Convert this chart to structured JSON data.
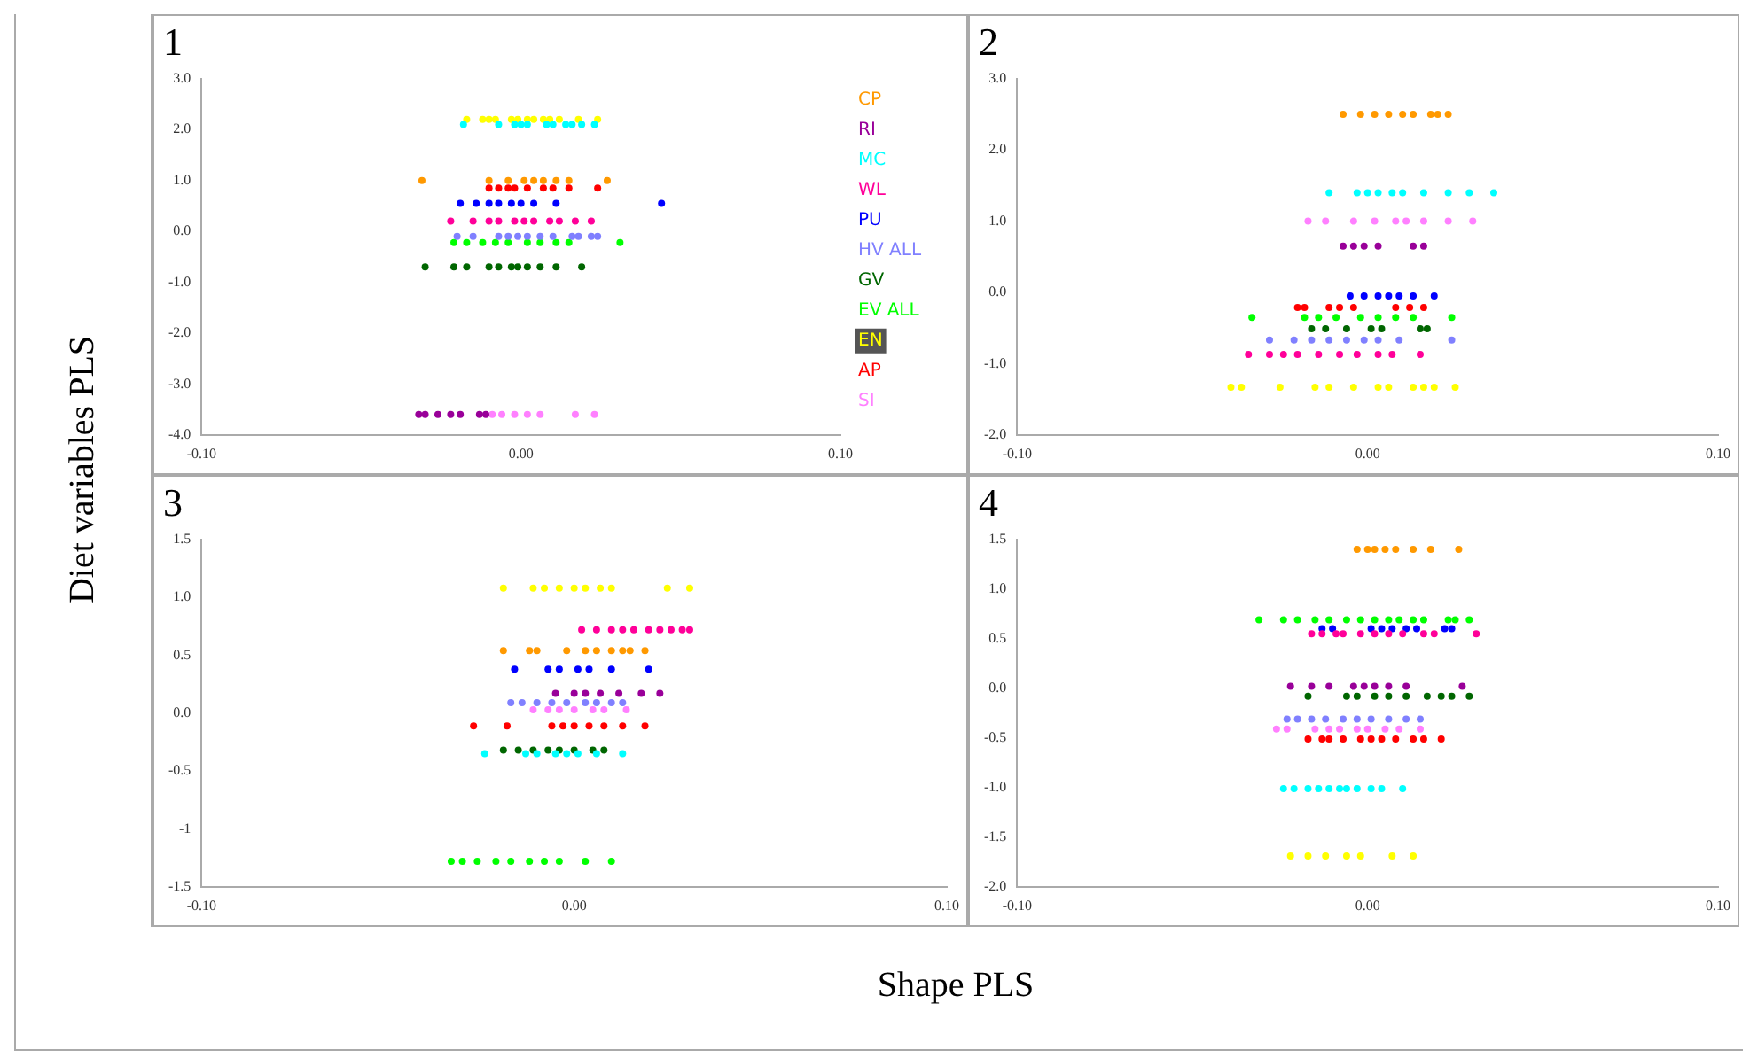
{
  "chart_data": [
    {
      "type": "scatter",
      "title": "1",
      "ylabel": "Diet variables PLS",
      "legend": "right",
      "marker": "circle",
      "grid": false,
      "xlim": [
        -0.1,
        0.1
      ],
      "xticks": [
        {
          "value": -0.1,
          "label": "-0.10"
        },
        {
          "value": 0,
          "label": "0.00"
        },
        {
          "value": 0.1,
          "label": "0.10"
        }
      ],
      "ylim": [
        -4,
        3
      ],
      "yticks": [
        {
          "value": -4,
          "label": "-4.0"
        },
        {
          "value": -3,
          "label": "-3.0"
        },
        {
          "value": -2,
          "label": "-2.0"
        },
        {
          "value": -1,
          "label": "-1.0"
        },
        {
          "value": 0,
          "label": "0.0"
        },
        {
          "value": 1,
          "label": "1.0"
        },
        {
          "value": 2,
          "label": "2.0"
        },
        {
          "value": 3,
          "label": "3.0"
        }
      ],
      "series": [
        {
          "name": "CP",
          "color": "#ff9900",
          "x": [
            -0.031,
            -0.01,
            -0.004,
            0.001,
            0.004,
            0.007,
            0.011,
            0.015,
            0.027
          ],
          "values": [
            1.0,
            1.0,
            1.0,
            1.0,
            1.0,
            1.0,
            1.0,
            1.0,
            1.0
          ]
        },
        {
          "name": "RI",
          "color": "#990099",
          "x": [
            -0.032,
            -0.03,
            -0.026,
            -0.022,
            -0.019,
            -0.013,
            -0.011
          ],
          "values": [
            -3.6,
            -3.6,
            -3.6,
            -3.6,
            -3.6,
            -3.6,
            -3.6
          ]
        },
        {
          "name": "MC",
          "color": "#00ffff",
          "x": [
            -0.018,
            -0.007,
            -0.002,
            0,
            0.002,
            0.008,
            0.01,
            0.014,
            0.016,
            0.019,
            0.023
          ],
          "values": [
            2.1,
            2.1,
            2.1,
            2.1,
            2.1,
            2.1,
            2.1,
            2.1,
            2.1,
            2.1,
            2.1
          ]
        },
        {
          "name": "WL",
          "color": "#ff0099",
          "x": [
            -0.022,
            -0.015,
            -0.01,
            -0.007,
            -0.002,
            0.001,
            0.004,
            0.009,
            0.012,
            0.017,
            0.022
          ],
          "values": [
            0.2,
            0.2,
            0.2,
            0.2,
            0.2,
            0.2,
            0.2,
            0.2,
            0.2,
            0.2,
            0.2
          ]
        },
        {
          "name": "PU",
          "color": "#0000ff",
          "x": [
            -0.019,
            -0.014,
            -0.01,
            -0.007,
            -0.003,
            0,
            0.004,
            0.011,
            0.044
          ],
          "values": [
            0.55,
            0.55,
            0.55,
            0.55,
            0.55,
            0.55,
            0.55,
            0.55,
            0.55
          ]
        },
        {
          "name": "HV ALL",
          "color": "#8080ff",
          "x": [
            -0.02,
            -0.015,
            -0.007,
            -0.004,
            -0.001,
            0.002,
            0.006,
            0.01,
            0.016,
            0.018,
            0.022,
            0.024
          ],
          "values": [
            -0.1,
            -0.1,
            -0.1,
            -0.1,
            -0.1,
            -0.1,
            -0.1,
            -0.1,
            -0.1,
            -0.1,
            -0.1,
            -0.1
          ]
        },
        {
          "name": "GV",
          "color": "#006600",
          "x": [
            -0.03,
            -0.021,
            -0.017,
            -0.01,
            -0.007,
            -0.003,
            -0.001,
            0.002,
            0.006,
            0.011,
            0.019
          ],
          "values": [
            -0.7,
            -0.7,
            -0.7,
            -0.7,
            -0.7,
            -0.7,
            -0.7,
            -0.7,
            -0.7,
            -0.7,
            -0.7
          ]
        },
        {
          "name": "EV ALL",
          "color": "#00ff00",
          "x": [
            -0.021,
            -0.017,
            -0.012,
            -0.008,
            -0.004,
            0.002,
            0.006,
            0.011,
            0.015,
            0.031
          ],
          "values": [
            -0.22,
            -0.22,
            -0.22,
            -0.22,
            -0.22,
            -0.22,
            -0.22,
            -0.22,
            -0.22,
            -0.22
          ]
        },
        {
          "name": "EN",
          "color": "#ffff00",
          "x": [
            -0.017,
            -0.012,
            -0.01,
            -0.008,
            -0.003,
            -0.001,
            0.002,
            0.004,
            0.007,
            0.009,
            0.012,
            0.018,
            0.024
          ],
          "values": [
            2.2,
            2.2,
            2.2,
            2.2,
            2.2,
            2.2,
            2.2,
            2.2,
            2.2,
            2.2,
            2.2,
            2.2,
            2.2
          ]
        },
        {
          "name": "AP",
          "color": "#ff0000",
          "x": [
            -0.01,
            -0.007,
            -0.004,
            -0.002,
            0.002,
            0.007,
            0.01,
            0.015,
            0.024
          ],
          "values": [
            0.85,
            0.85,
            0.85,
            0.85,
            0.85,
            0.85,
            0.85,
            0.85,
            0.85
          ]
        },
        {
          "name": "SI",
          "color": "#ff80ff",
          "x": [
            -0.009,
            -0.006,
            -0.002,
            0.002,
            0.006,
            0.017,
            0.023
          ],
          "values": [
            -3.6,
            -3.6,
            -3.6,
            -3.6,
            -3.6,
            -3.6,
            -3.6
          ]
        }
      ]
    },
    {
      "type": "scatter",
      "title": "2",
      "marker": "circle",
      "grid": false,
      "xlim": [
        -0.1,
        0.1
      ],
      "xticks": [
        {
          "value": -0.1,
          "label": "-0.10"
        },
        {
          "value": 0,
          "label": "0.00"
        },
        {
          "value": 0.1,
          "label": "0.10"
        }
      ],
      "ylim": [
        -2,
        3
      ],
      "yticks": [
        {
          "value": -2,
          "label": "-2.0"
        },
        {
          "value": -1,
          "label": "-1.0"
        },
        {
          "value": 0,
          "label": "0.0"
        },
        {
          "value": 1,
          "label": "1.0"
        },
        {
          "value": 2,
          "label": "2.0"
        },
        {
          "value": 3,
          "label": "3.0"
        }
      ],
      "series": [
        {
          "color": "#ff9900",
          "x": [
            -0.007,
            -0.002,
            0.002,
            0.006,
            0.01,
            0.013,
            0.018,
            0.02,
            0.023
          ],
          "values": [
            2.5,
            2.5,
            2.5,
            2.5,
            2.5,
            2.5,
            2.5,
            2.5,
            2.5
          ]
        },
        {
          "color": "#990099",
          "x": [
            -0.007,
            -0.004,
            -0.001,
            0.003,
            0.013,
            0.016
          ],
          "values": [
            0.65,
            0.65,
            0.65,
            0.65,
            0.65,
            0.65
          ]
        },
        {
          "color": "#00ffff",
          "x": [
            -0.011,
            -0.003,
            0,
            0.003,
            0.007,
            0.01,
            0.016,
            0.023,
            0.029,
            0.036
          ],
          "values": [
            1.4,
            1.4,
            1.4,
            1.4,
            1.4,
            1.4,
            1.4,
            1.4,
            1.4,
            1.4
          ]
        },
        {
          "color": "#ff0099",
          "x": [
            -0.034,
            -0.028,
            -0.024,
            -0.02,
            -0.014,
            -0.008,
            -0.003,
            0.003,
            0.007,
            0.015
          ],
          "values": [
            -0.87,
            -0.87,
            -0.87,
            -0.87,
            -0.87,
            -0.87,
            -0.87,
            -0.87,
            -0.87,
            -0.87
          ]
        },
        {
          "color": "#0000ff",
          "x": [
            -0.005,
            -0.001,
            0.003,
            0.006,
            0.009,
            0.013,
            0.019
          ],
          "values": [
            -0.05,
            -0.05,
            -0.05,
            -0.05,
            -0.05,
            -0.05,
            -0.05
          ]
        },
        {
          "color": "#8080ff",
          "x": [
            -0.028,
            -0.021,
            -0.016,
            -0.011,
            -0.006,
            -0.001,
            0.003,
            0.009,
            0.024
          ],
          "values": [
            -0.67,
            -0.67,
            -0.67,
            -0.67,
            -0.67,
            -0.67,
            -0.67,
            -0.67,
            -0.67
          ]
        },
        {
          "color": "#006600",
          "x": [
            -0.016,
            -0.012,
            -0.006,
            0.001,
            0.004,
            0.015,
            0.017
          ],
          "values": [
            -0.51,
            -0.51,
            -0.51,
            -0.51,
            -0.51,
            -0.51,
            -0.51
          ]
        },
        {
          "color": "#00ff00",
          "x": [
            -0.033,
            -0.018,
            -0.014,
            -0.009,
            -0.002,
            0.003,
            0.008,
            0.013,
            0.024
          ],
          "values": [
            -0.35,
            -0.35,
            -0.35,
            -0.35,
            -0.35,
            -0.35,
            -0.35,
            -0.35,
            -0.35
          ]
        },
        {
          "color": "#ffff00",
          "x": [
            -0.039,
            -0.036,
            -0.025,
            -0.015,
            -0.011,
            -0.004,
            0.003,
            0.006,
            0.013,
            0.016,
            0.019,
            0.025
          ],
          "values": [
            -1.33,
            -1.33,
            -1.33,
            -1.33,
            -1.33,
            -1.33,
            -1.33,
            -1.33,
            -1.33,
            -1.33,
            -1.33,
            -1.33
          ]
        },
        {
          "color": "#ff0000",
          "x": [
            -0.02,
            -0.018,
            -0.011,
            -0.008,
            -0.004,
            0.008,
            0.012,
            0.016
          ],
          "values": [
            -0.21,
            -0.21,
            -0.21,
            -0.21,
            -0.21,
            -0.21,
            -0.21,
            -0.21
          ]
        },
        {
          "color": "#ff80ff",
          "x": [
            -0.017,
            -0.012,
            -0.004,
            0.002,
            0.008,
            0.011,
            0.016,
            0.023,
            0.03
          ],
          "values": [
            1.0,
            1.0,
            1.0,
            1.0,
            1.0,
            1.0,
            1.0,
            1.0,
            1.0
          ]
        }
      ]
    },
    {
      "type": "scatter",
      "title": "3",
      "xlabel": "Shape PLS",
      "marker": "circle",
      "grid": false,
      "xlim": [
        -0.1,
        0.1
      ],
      "xticks": [
        {
          "value": -0.1,
          "label": "-0.10"
        },
        {
          "value": 0,
          "label": "0.00"
        },
        {
          "value": 0.1,
          "label": "0.10"
        }
      ],
      "ylim": [
        -1.5,
        1.5
      ],
      "yticks": [
        -1.5,
        -1.0,
        -0.5,
        {
          "value": 0,
          "label": "0.0"
        },
        0.5,
        {
          "value": 1,
          "label": "1.0"
        },
        1.5
      ],
      "series": [
        {
          "color": "#ff9900",
          "x": [
            -0.019,
            -0.012,
            -0.01,
            -0.002,
            0.003,
            0.006,
            0.01,
            0.013,
            0.015,
            0.019
          ],
          "values": [
            0.54,
            0.54,
            0.54,
            0.54,
            0.54,
            0.54,
            0.54,
            0.54,
            0.54,
            0.54
          ]
        },
        {
          "color": "#990099",
          "x": [
            -0.005,
            0,
            0.003,
            0.007,
            0.012,
            0.018,
            0.023
          ],
          "values": [
            0.17,
            0.17,
            0.17,
            0.17,
            0.17,
            0.17,
            0.17
          ]
        },
        {
          "color": "#00ffff",
          "x": [
            -0.024,
            -0.013,
            -0.01,
            -0.005,
            -0.002,
            0.001,
            0.006,
            0.013
          ],
          "values": [
            -0.35,
            -0.35,
            -0.35,
            -0.35,
            -0.35,
            -0.35,
            -0.35,
            -0.35
          ]
        },
        {
          "color": "#ff0099",
          "x": [
            0.002,
            0.006,
            0.01,
            0.013,
            0.016,
            0.02,
            0.023,
            0.026,
            0.029,
            0.031
          ],
          "values": [
            0.72,
            0.72,
            0.72,
            0.72,
            0.72,
            0.72,
            0.72,
            0.72,
            0.72,
            0.72
          ]
        },
        {
          "color": "#0000ff",
          "x": [
            -0.016,
            -0.007,
            -0.004,
            0.001,
            0.004,
            0.01,
            0.02
          ],
          "values": [
            0.38,
            0.38,
            0.38,
            0.38,
            0.38,
            0.38,
            0.38
          ]
        },
        {
          "color": "#8080ff",
          "x": [
            -0.017,
            -0.014,
            -0.01,
            -0.006,
            -0.002,
            0.003,
            0.006,
            0.01,
            0.013
          ],
          "values": [
            0.09,
            0.09,
            0.09,
            0.09,
            0.09,
            0.09,
            0.09,
            0.09,
            0.09
          ]
        },
        {
          "color": "#006600",
          "x": [
            -0.019,
            -0.015,
            -0.011,
            -0.007,
            -0.004,
            0,
            0.005,
            0.008
          ],
          "values": [
            -0.32,
            -0.32,
            -0.32,
            -0.32,
            -0.32,
            -0.32,
            -0.32,
            -0.32
          ]
        },
        {
          "color": "#00ff00",
          "x": [
            -0.033,
            -0.03,
            -0.026,
            -0.021,
            -0.017,
            -0.012,
            -0.008,
            -0.004,
            0.003,
            0.01
          ],
          "values": [
            -1.28,
            -1.28,
            -1.28,
            -1.28,
            -1.28,
            -1.28,
            -1.28,
            -1.28,
            -1.28,
            -1.28
          ]
        },
        {
          "color": "#ffff00",
          "x": [
            -0.019,
            -0.011,
            -0.008,
            -0.004,
            0,
            0.003,
            0.007,
            0.01,
            0.025,
            0.031
          ],
          "values": [
            1.08,
            1.08,
            1.08,
            1.08,
            1.08,
            1.08,
            1.08,
            1.08,
            1.08,
            1.08
          ]
        },
        {
          "color": "#ff0000",
          "x": [
            -0.027,
            -0.018,
            -0.006,
            -0.003,
            0,
            0.004,
            0.008,
            0.013,
            0.019
          ],
          "values": [
            -0.11,
            -0.11,
            -0.11,
            -0.11,
            -0.11,
            -0.11,
            -0.11,
            -0.11,
            -0.11
          ]
        },
        {
          "color": "#ff80ff",
          "x": [
            -0.011,
            -0.007,
            -0.004,
            0,
            0.005,
            0.008,
            0.014
          ],
          "values": [
            0.03,
            0.03,
            0.03,
            0.03,
            0.03,
            0.03,
            0.03
          ]
        }
      ]
    },
    {
      "type": "scatter",
      "title": "4",
      "marker": "circle",
      "grid": false,
      "xlim": [
        -0.1,
        0.1
      ],
      "xticks": [
        {
          "value": -0.1,
          "label": "-0.10"
        },
        {
          "value": 0,
          "label": "0.00"
        },
        {
          "value": 0.1,
          "label": "0.10"
        }
      ],
      "ylim": [
        -2,
        1.5
      ],
      "yticks": [
        {
          "value": -2,
          "label": "-2.0"
        },
        -1.5,
        {
          "value": -1,
          "label": "-1.0"
        },
        -0.5,
        {
          "value": 0,
          "label": "0.0"
        },
        0.5,
        {
          "value": 1,
          "label": "1.0"
        },
        1.5
      ],
      "series": [
        {
          "color": "#ff9900",
          "x": [
            -0.003,
            0,
            0.002,
            0.005,
            0.008,
            0.013,
            0.018,
            0.026
          ],
          "values": [
            1.4,
            1.4,
            1.4,
            1.4,
            1.4,
            1.4,
            1.4,
            1.4
          ]
        },
        {
          "color": "#990099",
          "x": [
            -0.022,
            -0.016,
            -0.011,
            -0.004,
            -0.001,
            0.002,
            0.006,
            0.011,
            0.027
          ],
          "values": [
            0.02,
            0.02,
            0.02,
            0.02,
            0.02,
            0.02,
            0.02,
            0.02,
            0.02
          ]
        },
        {
          "color": "#00ffff",
          "x": [
            -0.024,
            -0.021,
            -0.017,
            -0.014,
            -0.011,
            -0.008,
            -0.006,
            -0.003,
            0.001,
            0.004,
            0.01
          ],
          "values": [
            -1.01,
            -1.01,
            -1.01,
            -1.01,
            -1.01,
            -1.01,
            -1.01,
            -1.01,
            -1.01,
            -1.01,
            -1.01
          ]
        },
        {
          "color": "#ff0099",
          "x": [
            -0.016,
            -0.013,
            -0.009,
            -0.007,
            -0.002,
            0.002,
            0.006,
            0.01,
            0.016,
            0.019,
            0.031
          ],
          "values": [
            0.55,
            0.55,
            0.55,
            0.55,
            0.55,
            0.55,
            0.55,
            0.55,
            0.55,
            0.55,
            0.55
          ]
        },
        {
          "color": "#0000ff",
          "x": [
            -0.013,
            -0.01,
            0.001,
            0.004,
            0.007,
            0.011,
            0.014,
            0.022,
            0.024
          ],
          "values": [
            0.6,
            0.6,
            0.6,
            0.6,
            0.6,
            0.6,
            0.6,
            0.6,
            0.6
          ]
        },
        {
          "color": "#8080ff",
          "x": [
            -0.023,
            -0.02,
            -0.016,
            -0.012,
            -0.007,
            -0.003,
            0.001,
            0.006,
            0.011,
            0.015
          ],
          "values": [
            -0.31,
            -0.31,
            -0.31,
            -0.31,
            -0.31,
            -0.31,
            -0.31,
            -0.31,
            -0.31,
            -0.31
          ]
        },
        {
          "color": "#006600",
          "x": [
            -0.017,
            -0.006,
            -0.003,
            0.002,
            0.006,
            0.011,
            0.017,
            0.021,
            0.024,
            0.029
          ],
          "values": [
            -0.08,
            -0.08,
            -0.08,
            -0.08,
            -0.08,
            -0.08,
            -0.08,
            -0.08,
            -0.08,
            -0.08
          ]
        },
        {
          "color": "#00ff00",
          "x": [
            -0.031,
            -0.024,
            -0.02,
            -0.015,
            -0.011,
            -0.006,
            -0.002,
            0.002,
            0.006,
            0.009,
            0.013,
            0.016,
            0.023,
            0.025,
            0.029
          ],
          "values": [
            0.69,
            0.69,
            0.69,
            0.69,
            0.69,
            0.69,
            0.69,
            0.69,
            0.69,
            0.69,
            0.69,
            0.69,
            0.69,
            0.69,
            0.69
          ]
        },
        {
          "color": "#ffff00",
          "x": [
            -0.022,
            -0.017,
            -0.012,
            -0.006,
            -0.002,
            0.007,
            0.013
          ],
          "values": [
            -1.69,
            -1.69,
            -1.69,
            -1.69,
            -1.69,
            -1.69,
            -1.69
          ]
        },
        {
          "color": "#ff0000",
          "x": [
            -0.017,
            -0.013,
            -0.011,
            -0.007,
            -0.002,
            0.001,
            0.004,
            0.008,
            0.013,
            0.016,
            0.021
          ],
          "values": [
            -0.51,
            -0.51,
            -0.51,
            -0.51,
            -0.51,
            -0.51,
            -0.51,
            -0.51,
            -0.51,
            -0.51,
            -0.51
          ]
        },
        {
          "color": "#ff80ff",
          "x": [
            -0.026,
            -0.023,
            -0.015,
            -0.011,
            -0.008,
            -0.003,
            0,
            0.005,
            0.009,
            0.015
          ],
          "values": [
            -0.41,
            -0.41,
            -0.41,
            -0.41,
            -0.41,
            -0.41,
            -0.41,
            -0.41,
            -0.41,
            -0.41
          ]
        }
      ]
    }
  ]
}
